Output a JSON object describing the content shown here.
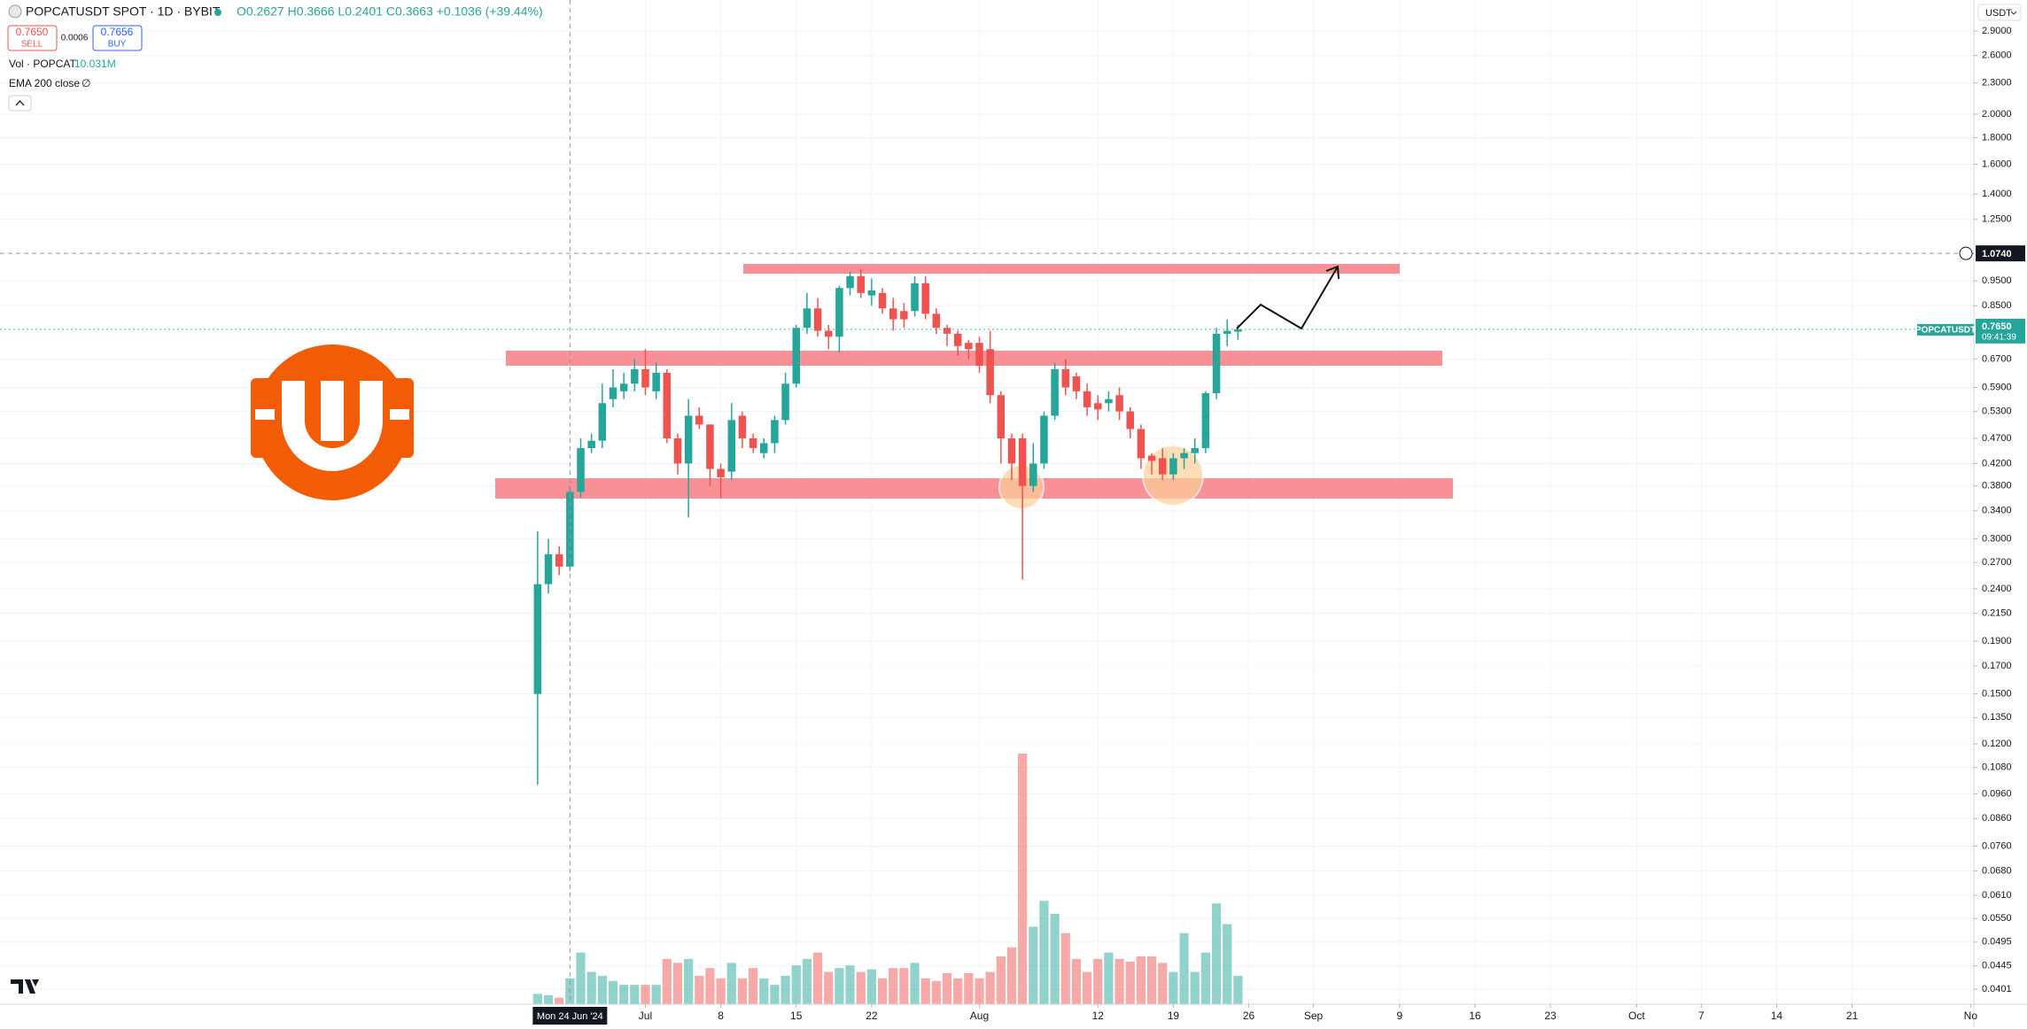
{
  "chart_data": {
    "type": "candlestick",
    "title": "POPCATUSDT SPOT · 1D · BYBIT",
    "ohlc_legend": "O0.2627 H0.3666 L0.2401 C0.3663 +0.1036 (+39.44%)",
    "sell_price": "0.7650",
    "sell_label": "SELL",
    "spread": "0.0006",
    "buy_price": "0.7656",
    "buy_label": "BUY",
    "volume_legend": "Vol · POPCAT",
    "volume_value": "10.031M",
    "ema_legend": "EMA 200 close",
    "ema_value": "∅",
    "currency": "USDT",
    "symbol_label": "POPCATUSDT",
    "last_price": {
      "value": 0.765,
      "label": "0.7650"
    },
    "countdown": "09:41:39",
    "crosshair": {
      "x": {
        "value": 3,
        "label": "Mon 24 Jun '24"
      },
      "y": {
        "value": 1.074,
        "label": "1.0740"
      }
    },
    "up_color": "#26a69a",
    "down_color": "#ef5350",
    "log_scale": true,
    "grid": true,
    "xlim": [
      -49.9,
      133.3
    ],
    "xticks": [
      {
        "value": 10,
        "label": "Jul"
      },
      {
        "value": 17,
        "label": "8"
      },
      {
        "value": 24,
        "label": "15"
      },
      {
        "value": 31,
        "label": "22"
      },
      {
        "value": 41,
        "label": "Aug"
      },
      {
        "value": 52,
        "label": "12"
      },
      {
        "value": 59,
        "label": "19"
      },
      {
        "value": 66,
        "label": "26"
      },
      {
        "value": 72,
        "label": "Sep"
      },
      {
        "value": 80,
        "label": "9"
      },
      {
        "value": 87,
        "label": "16"
      },
      {
        "value": 94,
        "label": "23"
      },
      {
        "value": 102,
        "label": "Oct"
      },
      {
        "value": 108,
        "label": "7"
      },
      {
        "value": 115,
        "label": "14"
      },
      {
        "value": 122,
        "label": "21"
      },
      {
        "value": 133,
        "label": "No"
      }
    ],
    "ylim": [
      0.0375,
      3.332
    ],
    "yticks": [
      {
        "value": 2.9,
        "label": "2.9000"
      },
      {
        "value": 2.6,
        "label": "2.6000"
      },
      {
        "value": 2.3,
        "label": "2.3000"
      },
      {
        "value": 2.0,
        "label": "2.0000"
      },
      {
        "value": 1.8,
        "label": "1.8000"
      },
      {
        "value": 1.6,
        "label": "1.6000"
      },
      {
        "value": 1.4,
        "label": "1.4000"
      },
      {
        "value": 1.25,
        "label": "1.2500"
      },
      {
        "value": 0.95,
        "label": "0.9500"
      },
      {
        "value": 0.85,
        "label": "0.8500"
      },
      {
        "value": 0.67,
        "label": "0.6700"
      },
      {
        "value": 0.59,
        "label": "0.5900"
      },
      {
        "value": 0.53,
        "label": "0.5300"
      },
      {
        "value": 0.47,
        "label": "0.4700"
      },
      {
        "value": 0.42,
        "label": "0.4200"
      },
      {
        "value": 0.38,
        "label": "0.3800"
      },
      {
        "value": 0.34,
        "label": "0.3400"
      },
      {
        "value": 0.3,
        "label": "0.3000"
      },
      {
        "value": 0.27,
        "label": "0.2700"
      },
      {
        "value": 0.24,
        "label": "0.2400"
      },
      {
        "value": 0.215,
        "label": "0.2150"
      },
      {
        "value": 0.19,
        "label": "0.1900"
      },
      {
        "value": 0.17,
        "label": "0.1700"
      },
      {
        "value": 0.15,
        "label": "0.1500"
      },
      {
        "value": 0.135,
        "label": "0.1350"
      },
      {
        "value": 0.12,
        "label": "0.1200"
      },
      {
        "value": 0.108,
        "label": "0.1080"
      },
      {
        "value": 0.096,
        "label": "0.0960"
      },
      {
        "value": 0.086,
        "label": "0.0860"
      },
      {
        "value": 0.076,
        "label": "0.0760"
      },
      {
        "value": 0.068,
        "label": "0.0680"
      },
      {
        "value": 0.061,
        "label": "0.0610"
      },
      {
        "value": 0.055,
        "label": "0.0550"
      },
      {
        "value": 0.0495,
        "label": "0.0495"
      },
      {
        "value": 0.0445,
        "label": "0.0445"
      },
      {
        "value": 0.0401,
        "label": "0.0401"
      }
    ],
    "open": [
      0.15,
      0.245,
      0.28,
      0.265,
      0.37,
      0.45,
      0.465,
      0.56,
      0.58,
      0.6,
      0.64,
      0.58,
      0.63,
      0.47,
      0.42,
      0.52,
      0.5,
      0.41,
      0.405,
      0.52,
      0.47,
      0.44,
      0.46,
      0.51,
      0.6,
      0.77,
      0.84,
      0.76,
      0.74,
      0.92,
      0.97,
      0.89,
      0.9,
      0.84,
      0.83,
      0.83,
      0.94,
      0.82,
      0.77,
      0.75,
      0.72,
      0.72,
      0.7,
      0.57,
      0.47,
      0.47,
      0.38,
      0.42,
      0.52,
      0.64,
      0.62,
      0.58,
      0.55,
      0.55,
      0.57,
      0.53,
      0.49,
      0.435,
      0.43,
      0.4,
      0.43,
      0.44,
      0.45,
      0.575,
      0.75,
      0.757
    ],
    "high": [
      0.31,
      0.3,
      0.29,
      0.38,
      0.47,
      0.48,
      0.6,
      0.64,
      0.63,
      0.67,
      0.7,
      0.66,
      0.64,
      0.48,
      0.56,
      0.54,
      0.5,
      0.42,
      0.55,
      0.53,
      0.48,
      0.47,
      0.52,
      0.63,
      0.78,
      0.9,
      0.88,
      0.78,
      0.93,
      0.99,
      1.0,
      0.96,
      0.92,
      0.88,
      0.86,
      0.97,
      0.97,
      0.84,
      0.78,
      0.76,
      0.73,
      0.74,
      0.76,
      0.58,
      0.48,
      0.48,
      0.46,
      0.53,
      0.66,
      0.67,
      0.63,
      0.6,
      0.57,
      0.58,
      0.59,
      0.54,
      0.5,
      0.44,
      0.45,
      0.44,
      0.45,
      0.47,
      0.58,
      0.77,
      0.8,
      0.78
    ],
    "low": [
      0.1,
      0.235,
      0.255,
      0.26,
      0.36,
      0.44,
      0.45,
      0.54,
      0.56,
      0.58,
      0.57,
      0.56,
      0.46,
      0.4,
      0.33,
      0.49,
      0.38,
      0.36,
      0.39,
      0.45,
      0.44,
      0.43,
      0.44,
      0.5,
      0.59,
      0.75,
      0.74,
      0.7,
      0.69,
      0.89,
      0.88,
      0.85,
      0.82,
      0.76,
      0.77,
      0.81,
      0.8,
      0.75,
      0.71,
      0.68,
      0.67,
      0.63,
      0.55,
      0.42,
      0.39,
      0.25,
      0.37,
      0.41,
      0.51,
      0.57,
      0.56,
      0.52,
      0.51,
      0.53,
      0.51,
      0.47,
      0.41,
      0.4,
      0.39,
      0.39,
      0.41,
      0.42,
      0.44,
      0.56,
      0.71,
      0.73
    ],
    "close": [
      0.245,
      0.28,
      0.265,
      0.37,
      0.45,
      0.465,
      0.55,
      0.59,
      0.6,
      0.64,
      0.59,
      0.63,
      0.47,
      0.42,
      0.52,
      0.5,
      0.41,
      0.395,
      0.51,
      0.47,
      0.45,
      0.46,
      0.51,
      0.6,
      0.77,
      0.84,
      0.76,
      0.74,
      0.92,
      0.97,
      0.9,
      0.91,
      0.84,
      0.8,
      0.8,
      0.94,
      0.82,
      0.77,
      0.75,
      0.71,
      0.7,
      0.65,
      0.57,
      0.47,
      0.42,
      0.38,
      0.42,
      0.52,
      0.64,
      0.59,
      0.58,
      0.54,
      0.535,
      0.56,
      0.53,
      0.49,
      0.43,
      0.425,
      0.4,
      0.43,
      0.44,
      0.45,
      0.575,
      0.75,
      0.76,
      0.765
    ],
    "volume": [
      8,
      7,
      5,
      20,
      40,
      25,
      22,
      18,
      15,
      15,
      15,
      15,
      35,
      32,
      35,
      22,
      28,
      20,
      32,
      20,
      28,
      20,
      15,
      22,
      30,
      35,
      40,
      25,
      28,
      30,
      25,
      27,
      20,
      28,
      28,
      32,
      20,
      18,
      24,
      20,
      24,
      20,
      25,
      37,
      44,
      194,
      60,
      80,
      70,
      55,
      35,
      25,
      35,
      40,
      35,
      33,
      37,
      37,
      32,
      25,
      55,
      25,
      40,
      78,
      62,
      22
    ]
  }
}
